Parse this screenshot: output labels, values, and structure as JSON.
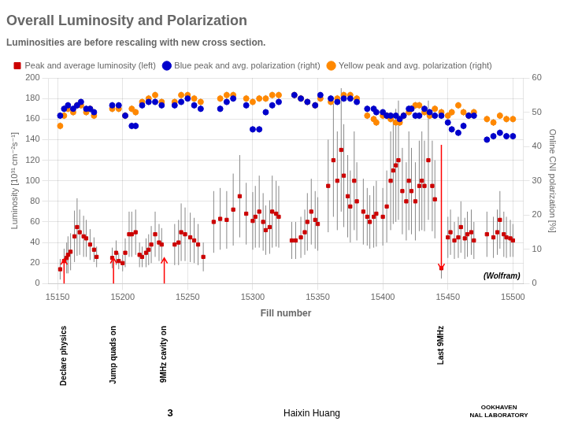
{
  "chart_data": {
    "type": "scatter",
    "title": "Overall Luminosity and Polarization",
    "subtitle": "Luminosities are before rescaling with new cross section.",
    "x_label": "Fill number",
    "y_label": "Luminosity [10³¹ cm⁻²s⁻¹]",
    "y2_label": "Online CNI polarization [%]",
    "xlim": [
      15143,
      15508
    ],
    "xticks": [
      15150,
      15200,
      15250,
      15300,
      15350,
      15400,
      15450,
      15500
    ],
    "ylim": [
      0,
      200
    ],
    "yticks": [
      0,
      20,
      40,
      60,
      80,
      100,
      120,
      140,
      160,
      180,
      200
    ],
    "y2lim": [
      0,
      60
    ],
    "y2ticks": [
      0,
      10,
      20,
      30,
      40,
      50,
      60
    ],
    "grid": true,
    "legend": "upper left",
    "series": [
      {
        "name": "Peak and average luminosity (left)",
        "color": "#cc0000",
        "marker": "square",
        "axis": "y",
        "x": [
          15152,
          15155,
          15157,
          15158,
          15160,
          15163,
          15165,
          15167,
          15170,
          15172,
          15175,
          15178,
          15180,
          15192,
          15195,
          15197,
          15200,
          15202,
          15205,
          15207,
          15210,
          15213,
          15215,
          15218,
          15220,
          15222,
          15225,
          15228,
          15230,
          15240,
          15243,
          15245,
          15248,
          15252,
          15255,
          15258,
          15262,
          15270,
          15275,
          15280,
          15285,
          15290,
          15295,
          15300,
          15302,
          15305,
          15308,
          15310,
          15313,
          15315,
          15318,
          15320,
          15330,
          15333,
          15337,
          15340,
          15342,
          15345,
          15348,
          15350,
          15358,
          15362,
          15365,
          15368,
          15370,
          15373,
          15375,
          15378,
          15380,
          15385,
          15388,
          15390,
          15393,
          15395,
          15400,
          15403,
          15406,
          15408,
          15410,
          15412,
          15415,
          15418,
          15420,
          15422,
          15425,
          15428,
          15430,
          15432,
          15435,
          15438,
          15440,
          15445,
          15450,
          15452,
          15455,
          15458,
          15460,
          15463,
          15465,
          15468,
          15470,
          15480,
          15485,
          15488,
          15490,
          15493,
          15495,
          15498,
          15500
        ],
        "values": [
          14,
          22,
          25,
          28,
          31,
          46,
          55,
          50,
          46,
          44,
          38,
          33,
          26,
          25,
          30,
          22,
          20,
          30,
          48,
          48,
          50,
          28,
          26,
          30,
          33,
          38,
          48,
          40,
          38,
          38,
          40,
          50,
          48,
          45,
          42,
          38,
          26,
          60,
          63,
          62,
          72,
          85,
          68,
          61,
          65,
          70,
          60,
          52,
          55,
          70,
          68,
          65,
          42,
          42,
          45,
          50,
          60,
          70,
          62,
          58,
          95,
          120,
          100,
          130,
          105,
          85,
          75,
          100,
          80,
          70,
          65,
          60,
          65,
          68,
          65,
          75,
          100,
          110,
          115,
          120,
          90,
          80,
          100,
          90,
          80,
          95,
          100,
          95,
          120,
          95,
          82,
          15,
          45,
          50,
          42,
          45,
          55,
          44,
          48,
          50,
          42,
          48,
          45,
          50,
          62,
          48,
          45,
          44,
          42
        ],
        "errors": [
          10,
          12,
          15,
          18,
          18,
          25,
          28,
          22,
          20,
          18,
          15,
          12,
          10,
          10,
          12,
          8,
          8,
          14,
          22,
          22,
          22,
          12,
          10,
          14,
          15,
          18,
          22,
          18,
          16,
          20,
          22,
          28,
          26,
          24,
          22,
          20,
          14,
          30,
          30,
          28,
          35,
          40,
          30,
          28,
          30,
          35,
          28,
          24,
          26,
          35,
          32,
          30,
          18,
          18,
          20,
          22,
          28,
          32,
          28,
          26,
          45,
          55,
          48,
          60,
          50,
          40,
          35,
          48,
          38,
          32,
          28,
          26,
          30,
          32,
          28,
          35,
          48,
          52,
          55,
          58,
          42,
          38,
          48,
          42,
          38,
          44,
          48,
          44,
          58,
          44,
          38,
          10,
          20,
          22,
          18,
          20,
          25,
          20,
          22,
          22,
          18,
          22,
          20,
          22,
          28,
          22,
          20,
          18,
          16
        ]
      },
      {
        "name": "Blue peak and avg. polarization (right)",
        "color": "#0000cc",
        "marker": "circle",
        "axis": "y2",
        "x": [
          15152,
          15155,
          15158,
          15162,
          15165,
          15168,
          15172,
          15175,
          15178,
          15192,
          15197,
          15202,
          15207,
          15210,
          15215,
          15220,
          15225,
          15230,
          15240,
          15245,
          15250,
          15255,
          15260,
          15275,
          15280,
          15285,
          15295,
          15300,
          15305,
          15310,
          15315,
          15320,
          15332,
          15337,
          15342,
          15348,
          15352,
          15360,
          15365,
          15370,
          15375,
          15380,
          15388,
          15393,
          15395,
          15400,
          15403,
          15406,
          15410,
          15413,
          15416,
          15420,
          15422,
          15425,
          15428,
          15432,
          15436,
          15440,
          15445,
          15450,
          15453,
          15458,
          15462,
          15466,
          15470,
          15480,
          15485,
          15490,
          15495,
          15500
        ],
        "values": [
          49,
          51,
          52,
          51,
          52,
          53,
          51,
          51,
          50,
          52,
          52,
          49,
          46,
          46,
          52,
          53,
          53,
          52,
          52,
          53,
          54,
          52,
          51,
          51,
          53,
          54,
          52,
          45,
          45,
          50,
          52,
          53,
          55,
          54,
          53,
          52,
          55,
          54,
          53,
          54,
          54,
          53,
          51,
          51,
          50,
          50,
          49,
          49,
          49,
          48,
          49,
          51,
          51,
          49,
          49,
          51,
          50,
          49,
          49,
          47,
          45,
          44,
          46,
          49,
          49,
          42,
          43,
          44,
          43,
          43
        ],
        "errors": [
          1,
          1,
          1,
          1,
          1,
          1,
          1,
          1,
          1,
          1,
          1,
          1,
          1,
          1,
          1,
          1,
          1,
          1,
          1,
          1,
          1,
          1,
          1,
          1,
          1,
          1,
          1,
          1,
          1,
          1,
          1,
          1,
          1,
          1,
          1,
          1,
          1,
          1,
          1,
          1,
          1,
          1,
          1,
          1,
          1,
          1,
          1,
          1,
          1,
          1,
          1,
          1,
          1,
          1,
          1,
          1,
          1,
          1,
          1,
          1,
          1,
          1,
          1,
          1,
          1,
          1,
          1,
          1,
          1,
          1
        ]
      },
      {
        "name": "Yellow peak and avg. polarization (right)",
        "color": "#ff8800",
        "marker": "circle",
        "axis": "y2",
        "x": [
          15152,
          15155,
          15158,
          15162,
          15165,
          15168,
          15172,
          15175,
          15178,
          15192,
          15197,
          15202,
          15207,
          15210,
          15215,
          15220,
          15225,
          15230,
          15240,
          15245,
          15250,
          15255,
          15260,
          15275,
          15280,
          15285,
          15295,
          15300,
          15305,
          15310,
          15315,
          15320,
          15332,
          15337,
          15342,
          15348,
          15352,
          15360,
          15365,
          15370,
          15375,
          15380,
          15388,
          15393,
          15395,
          15400,
          15403,
          15406,
          15410,
          15413,
          15416,
          15420,
          15422,
          15425,
          15428,
          15432,
          15436,
          15440,
          15445,
          15450,
          15453,
          15458,
          15462,
          15466,
          15470,
          15480,
          15485,
          15490,
          15495,
          15500
        ],
        "values": [
          46,
          49,
          51,
          50,
          52,
          52,
          50,
          51,
          49,
          51,
          51,
          49,
          51,
          50,
          53,
          54,
          55,
          53,
          53,
          55,
          55,
          54,
          53,
          54,
          55,
          55,
          54,
          53,
          54,
          54,
          55,
          55,
          55,
          54,
          53,
          52,
          54,
          53,
          54,
          55,
          55,
          54,
          49,
          48,
          47,
          49,
          49,
          48,
          47,
          47,
          49,
          50,
          51,
          52,
          52,
          50,
          49,
          51,
          50,
          49,
          50,
          52,
          50,
          49,
          50,
          48,
          47,
          49,
          48,
          48
        ],
        "errors": [
          1,
          1,
          1,
          1,
          1,
          1,
          1,
          1,
          1,
          1,
          1,
          1,
          1,
          1,
          1,
          1,
          1,
          1,
          1,
          1,
          1,
          1,
          1,
          1,
          1,
          1,
          1,
          1,
          1,
          1,
          1,
          1,
          1,
          1,
          1,
          1,
          1,
          1,
          1,
          1,
          1,
          1,
          1,
          1,
          1,
          1,
          1,
          1,
          1,
          1,
          1,
          1,
          1,
          1,
          1,
          1,
          1,
          1,
          1,
          1,
          1,
          1,
          1,
          1,
          1,
          1,
          1,
          1,
          1,
          1
        ]
      }
    ],
    "annotations": [
      {
        "x": 15155,
        "text": "Declare physics",
        "arrow_from": 0,
        "arrow_to": 24,
        "color": "red"
      },
      {
        "x": 15193,
        "text": "Jump quads on",
        "arrow_from": 0,
        "arrow_to": 25,
        "color": "red"
      },
      {
        "x": 15232,
        "text": "9MHz cavity on",
        "arrow_from": 0,
        "arrow_to": 25,
        "color": "red"
      },
      {
        "x": 15445,
        "text": "Last 9MHz",
        "arrow_from": 135,
        "arrow_to": 14,
        "color": "red"
      }
    ],
    "corner_text": "(Wolfram)",
    "footer": [
      "3",
      "Haixin Huang"
    ],
    "logo_text": "OOKHAVEN\nNAL LABORATORY"
  }
}
